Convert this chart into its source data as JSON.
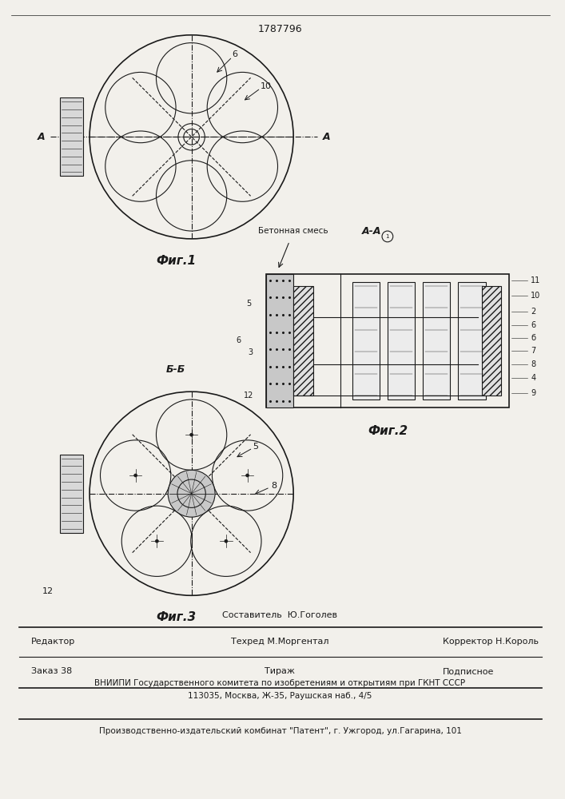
{
  "patent_number": "1787796",
  "bg_color": "#f2f0eb",
  "fig1_caption": "Фиг.1",
  "fig2_caption": "Фиг.2",
  "fig3_caption": "Фиг.3",
  "footer_line1_left": "Редактор",
  "footer_line1_mid": "Составитель  Ю.Гоголев",
  "footer_line1_mid2": "Техред М.Моргентал",
  "footer_line1_right": "Корректор Н.Король",
  "footer_line2_left": "Заказ 38",
  "footer_line2_mid": "Тираж",
  "footer_line2_right": "Подписное",
  "footer_line3": "ВНИИПИ Государственного комитета по изобретениям и открытиям при ГКНТ СССР",
  "footer_line4": "113035, Москва, Ж-35, Раушская наб., 4/5",
  "footer_line5": "Производственно-издательский комбинат \"Патент\", г. Ужгород, ул.Гагарина, 101"
}
